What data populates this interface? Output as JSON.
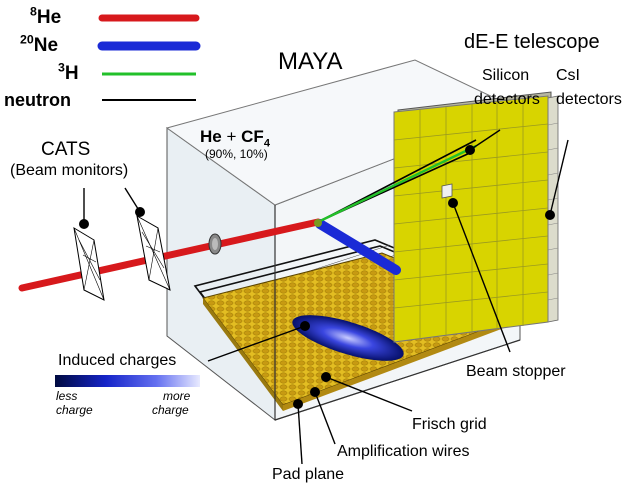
{
  "title": "MAYA",
  "legend": [
    {
      "mass": "8",
      "symbol": "He",
      "color": "#d7191c"
    },
    {
      "mass": "20",
      "symbol": "Ne",
      "color": "#1a2ad6"
    },
    {
      "mass": "3",
      "symbol": "H",
      "color": "#22c02a"
    },
    {
      "mass": "",
      "symbol": "neutron",
      "color": "#000000"
    }
  ],
  "gas": {
    "he": "He",
    "plus": "+",
    "cf": "CF",
    "cf_sub": "4",
    "ratio": "(90%, 10%)"
  },
  "labels": {
    "cats": "CATS",
    "cats_sub": "(Beam monitors)",
    "telescope": "dE-E telescope",
    "silicon_1": "Silicon",
    "silicon_2": "detectors",
    "csi_1": "CsI",
    "csi_2": "detectors",
    "induced": "Induced charges",
    "less_1": "less",
    "less_2": "charge",
    "more_1": "more",
    "more_2": "charge",
    "beam_stopper": "Beam stopper",
    "frisch": "Frisch grid",
    "amp": "Amplification wires",
    "pad": "Pad plane"
  },
  "colors": {
    "beam": "#d7191c",
    "recoil": "#1a2ad6",
    "triton": "#22c02a",
    "detector": "#d8d400",
    "pad": "#e0b820",
    "box_edge": "#222222"
  }
}
